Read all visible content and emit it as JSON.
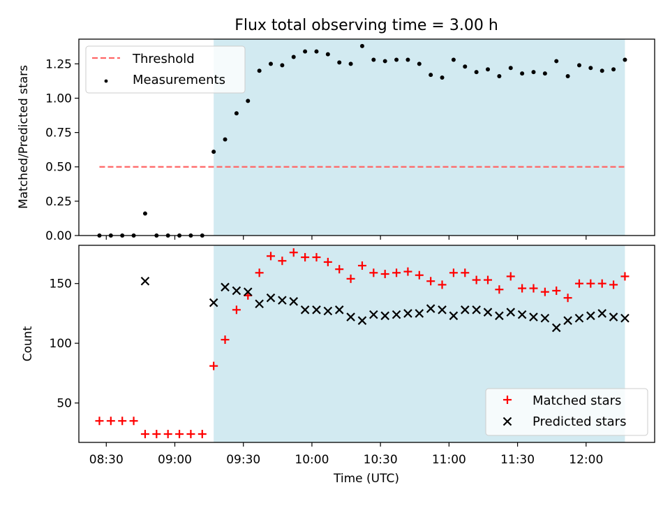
{
  "title": "Flux total observing time = 3.00 h",
  "colors": {
    "shade": "#add8e6",
    "threshold": "#ff6666",
    "matched": "#ff0000",
    "predicted": "#000000",
    "measurements": "#000000"
  },
  "chart_data": [
    {
      "type": "scatter",
      "ylabel": "Matched/Predicted stars",
      "ylim": [
        0,
        1.43
      ],
      "yticks": [
        0,
        0.25,
        0.5,
        0.75,
        1.0,
        1.25
      ],
      "ytick_labels": [
        "0.00",
        "0.25",
        "0.50",
        "0.75",
        "1.00",
        "1.25"
      ],
      "shaded_region": {
        "start": "09:17",
        "end": "12:17"
      },
      "legend": {
        "position": "top-left",
        "threshold_label": "Threshold",
        "measurements_label": "Measurements"
      },
      "threshold": {
        "value": 0.5,
        "start": "08:27",
        "end": "12:17"
      },
      "measurements": {
        "x": [
          "08:27",
          "08:32",
          "08:37",
          "08:42",
          "08:47",
          "08:52",
          "08:57",
          "09:02",
          "09:07",
          "09:12",
          "09:17",
          "09:22",
          "09:27",
          "09:32",
          "09:37",
          "09:42",
          "09:47",
          "09:52",
          "09:57",
          "10:02",
          "10:07",
          "10:12",
          "10:17",
          "10:22",
          "10:27",
          "10:32",
          "10:37",
          "10:42",
          "10:47",
          "10:52",
          "10:57",
          "11:02",
          "11:07",
          "11:12",
          "11:17",
          "11:22",
          "11:27",
          "11:32",
          "11:37",
          "11:42",
          "11:47",
          "11:52",
          "11:57",
          "12:02",
          "12:07",
          "12:12",
          "12:17"
        ],
        "y": [
          0,
          0,
          0,
          0,
          0.16,
          0,
          0,
          0,
          0,
          0,
          0.61,
          0.7,
          0.89,
          0.98,
          1.2,
          1.25,
          1.24,
          1.3,
          1.34,
          1.34,
          1.32,
          1.26,
          1.25,
          1.38,
          1.28,
          1.27,
          1.28,
          1.28,
          1.25,
          1.17,
          1.15,
          1.28,
          1.23,
          1.19,
          1.21,
          1.16,
          1.22,
          1.18,
          1.19,
          1.18,
          1.27,
          1.16,
          1.24,
          1.22,
          1.2,
          1.21,
          1.28
        ]
      }
    },
    {
      "type": "scatter",
      "xlabel": "Time (UTC)",
      "ylabel": "Count",
      "ylim": [
        17,
        182
      ],
      "yticks": [
        50,
        100,
        150
      ],
      "ytick_labels": [
        "50",
        "100",
        "150"
      ],
      "xlim": [
        "08:18",
        "12:30"
      ],
      "xticks": [
        "08:30",
        "09:00",
        "09:30",
        "10:00",
        "10:30",
        "11:00",
        "11:30",
        "12:00"
      ],
      "shaded_region": {
        "start": "09:17",
        "end": "12:17"
      },
      "legend": {
        "position": "lower-right",
        "matched_label": "Matched stars",
        "predicted_label": "Predicted stars"
      },
      "series": [
        {
          "name": "Matched stars",
          "x": [
            "08:27",
            "08:32",
            "08:37",
            "08:42",
            "08:47",
            "08:52",
            "08:57",
            "09:02",
            "09:07",
            "09:12",
            "09:17",
            "09:22",
            "09:27",
            "09:32",
            "09:37",
            "09:42",
            "09:47",
            "09:52",
            "09:57",
            "10:02",
            "10:07",
            "10:12",
            "10:17",
            "10:22",
            "10:27",
            "10:32",
            "10:37",
            "10:42",
            "10:47",
            "10:52",
            "10:57",
            "11:02",
            "11:07",
            "11:12",
            "11:17",
            "11:22",
            "11:27",
            "11:32",
            "11:37",
            "11:42",
            "11:47",
            "11:52",
            "11:57",
            "12:02",
            "12:07",
            "12:12",
            "12:17"
          ],
          "values": [
            35,
            35,
            35,
            35,
            24,
            24,
            24,
            24,
            24,
            24,
            81,
            103,
            128,
            140,
            159,
            173,
            169,
            176,
            172,
            172,
            168,
            162,
            154,
            165,
            159,
            158,
            159,
            160,
            157,
            152,
            149,
            159,
            159,
            153,
            153,
            145,
            156,
            146,
            146,
            143,
            144,
            138,
            150,
            150,
            150,
            149,
            156
          ]
        },
        {
          "name": "Predicted stars",
          "x": [
            "08:47",
            "09:17",
            "09:22",
            "09:27",
            "09:32",
            "09:37",
            "09:42",
            "09:47",
            "09:52",
            "09:57",
            "10:02",
            "10:07",
            "10:12",
            "10:17",
            "10:22",
            "10:27",
            "10:32",
            "10:37",
            "10:42",
            "10:47",
            "10:52",
            "10:57",
            "11:02",
            "11:07",
            "11:12",
            "11:17",
            "11:22",
            "11:27",
            "11:32",
            "11:37",
            "11:42",
            "11:47",
            "11:52",
            "11:57",
            "12:02",
            "12:07",
            "12:12",
            "12:17"
          ],
          "values": [
            152,
            134,
            147,
            144,
            143,
            133,
            138,
            136,
            135,
            128,
            128,
            127,
            128,
            122,
            119,
            124,
            123,
            124,
            125,
            125,
            129,
            128,
            123,
            128,
            128,
            126,
            123,
            126,
            124,
            122,
            121,
            113,
            119,
            121,
            123,
            125,
            122,
            121
          ]
        }
      ]
    }
  ]
}
